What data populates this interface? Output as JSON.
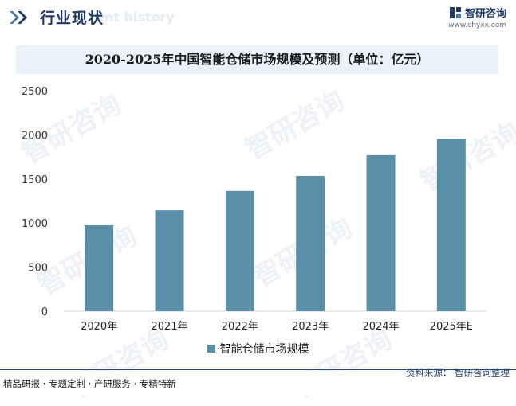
{
  "header": {
    "title": "行业现状",
    "background_text": "ent history"
  },
  "brand": {
    "name": "智研咨询",
    "url": "www.chyxx.com",
    "logo_icon": "chyxx-logo-icon"
  },
  "watermark_text": "智研咨询",
  "colors": {
    "bar": "#5a8fa8",
    "navy": "#1f3a63",
    "title_band": "#eaf1f8"
  },
  "chart_data": {
    "type": "bar",
    "title": "2020-2025年中国智能仓储市场规模及预测（单位：亿元）",
    "categories": [
      "2020年",
      "2021年",
      "2022年",
      "2023年",
      "2024年",
      "2025年E"
    ],
    "series": [
      {
        "name": "智能仓储市场规模",
        "values": [
          975,
          1145,
          1365,
          1535,
          1770,
          1955
        ]
      }
    ],
    "ylim": [
      0,
      2500
    ],
    "yticks": [
      "0",
      "500",
      "1000",
      "1500",
      "2000",
      "2500"
    ],
    "xlabel": "",
    "ylabel": "",
    "grid": false,
    "legend_position": "bottom"
  },
  "footer": {
    "tagline": "精品研报 · 专题定制 · 产研服务 · 专精特新",
    "source": "资料来源：   智研咨询整理"
  }
}
